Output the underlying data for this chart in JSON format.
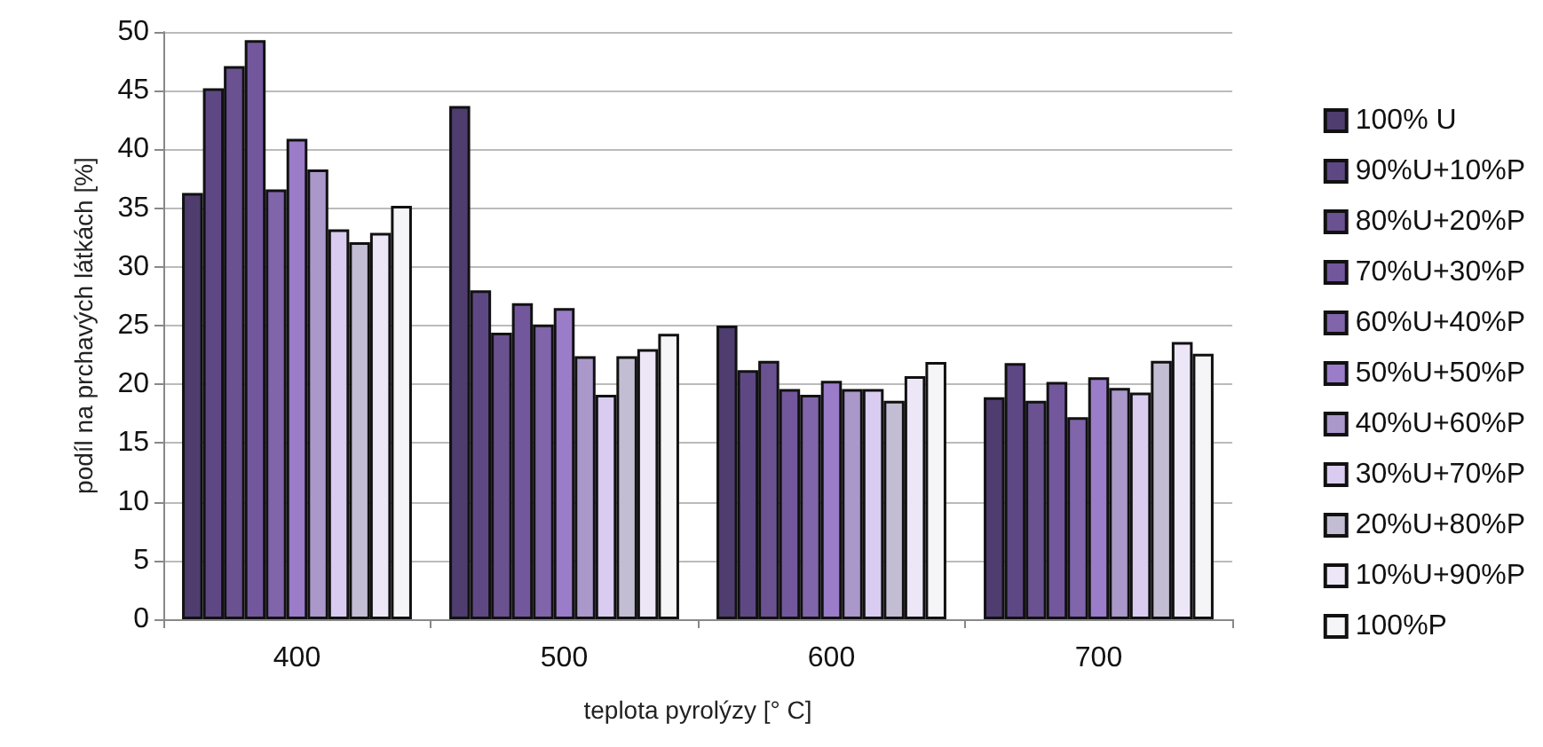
{
  "chart_data": {
    "type": "bar",
    "xlabel": "teplota pyrolýzy [° C]",
    "ylabel": "podíl na prchavých látkách [%]",
    "categories": [
      "400",
      "500",
      "600",
      "700"
    ],
    "series": [
      {
        "name": "100% U",
        "color": "#4e3d6e",
        "values": [
          36.3,
          43.7,
          25.0,
          18.9
        ]
      },
      {
        "name": "90%U+10%P",
        "color": "#5e4884",
        "values": [
          45.2,
          28.0,
          21.2,
          21.8
        ]
      },
      {
        "name": "80%U+20%P",
        "color": "#6a5190",
        "values": [
          47.1,
          24.4,
          22.0,
          18.6
        ]
      },
      {
        "name": "70%U+30%P",
        "color": "#73579c",
        "values": [
          49.3,
          26.9,
          19.6,
          20.2
        ]
      },
      {
        "name": "60%U+40%P",
        "color": "#8065aa",
        "values": [
          36.6,
          25.1,
          19.1,
          17.2
        ]
      },
      {
        "name": "50%U+50%P",
        "color": "#9a7cc8",
        "values": [
          40.9,
          26.5,
          20.3,
          20.6
        ]
      },
      {
        "name": "40%U+60%P",
        "color": "#a998c9",
        "values": [
          38.3,
          22.4,
          19.6,
          19.7
        ]
      },
      {
        "name": "30%U+70%P",
        "color": "#d9ccf0",
        "values": [
          33.2,
          19.1,
          19.6,
          19.3
        ]
      },
      {
        "name": "20%U+80%P",
        "color": "#c3bdd3",
        "values": [
          32.1,
          22.4,
          18.6,
          22.0
        ]
      },
      {
        "name": "10%U+90%P",
        "color": "#ece6f6",
        "values": [
          32.9,
          23.0,
          20.7,
          23.6
        ]
      },
      {
        "name": "100%P",
        "color": "#f5f5f7",
        "values": [
          35.2,
          24.3,
          21.9,
          22.6
        ]
      }
    ],
    "ylim": [
      0,
      50
    ],
    "yticks": [
      0,
      5,
      10,
      15,
      20,
      25,
      30,
      35,
      40,
      45,
      50
    ],
    "grid": "y",
    "legend": "right"
  }
}
